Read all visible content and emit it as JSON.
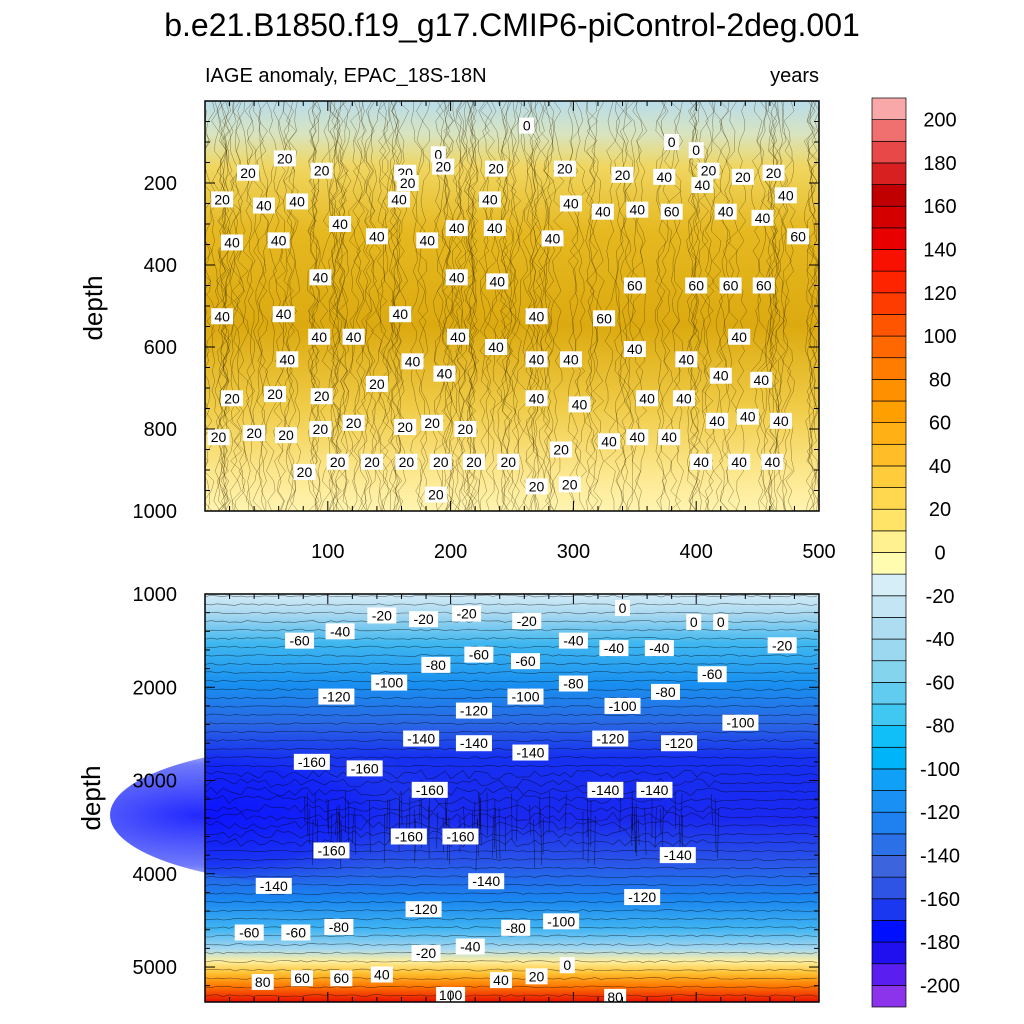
{
  "chart_data": {
    "type": "heatmap",
    "title": "b.e21.B1850.f19_g17.CMIP6-piControl-2deg.001",
    "subtitle_left": "IAGE anomaly, EPAC_18S-18N",
    "subtitle_right": "years",
    "xlabel": "",
    "x_ticks": [
      "100",
      "200",
      "300",
      "400",
      "500"
    ],
    "xlim": [
      0,
      500
    ],
    "colorbar": {
      "levels": [
        -210,
        -200,
        -190,
        -180,
        -170,
        -160,
        -150,
        -140,
        -130,
        -120,
        -110,
        -100,
        -90,
        -80,
        -70,
        -60,
        -50,
        -40,
        -30,
        -20,
        -10,
        0,
        10,
        20,
        30,
        40,
        50,
        60,
        70,
        80,
        90,
        100,
        110,
        120,
        130,
        140,
        150,
        160,
        170,
        180,
        190,
        200,
        210
      ],
      "colors": [
        "#8c34eb",
        "#5a1ff0",
        "#2010f0",
        "#0010ff",
        "#1a38f0",
        "#2e54e6",
        "#3c64dc",
        "#2c70e8",
        "#1f80f0",
        "#1890f4",
        "#10a0f8",
        "#00b4fa",
        "#10bef8",
        "#40c8f2",
        "#62ccf0",
        "#84d4ee",
        "#9cd8ef",
        "#aedcf0",
        "#c4e6f4",
        "#d6eef8",
        "#fffcb0",
        "#fff090",
        "#ffe468",
        "#ffd850",
        "#ffcc3c",
        "#ffbe28",
        "#ffb014",
        "#ffa000",
        "#ff9000",
        "#ff7c00",
        "#ff6800",
        "#ff5400",
        "#ff3c00",
        "#ff2400",
        "#f81000",
        "#e80000",
        "#d40000",
        "#c00000",
        "#d82020",
        "#e84848",
        "#f07070",
        "#f8a8a8"
      ],
      "tick_labels": [
        "200",
        "180",
        "160",
        "140",
        "120",
        "100",
        "80",
        "60",
        "40",
        "20",
        "0",
        "-20",
        "-40",
        "-60",
        "-80",
        "-100",
        "-120",
        "-140",
        "-160",
        "-180",
        "-200"
      ]
    },
    "panels": [
      {
        "name": "upper-ocean",
        "ylabel": "depth",
        "ylim": [
          0,
          1000
        ],
        "y_ticks": [
          "200",
          "400",
          "600",
          "800",
          "1000"
        ],
        "y_tick_values": [
          200,
          400,
          600,
          800,
          1000
        ],
        "contour_labels": [
          {
            "t": "0",
            "x": 262,
            "y": 60
          },
          {
            "t": "0",
            "x": 380,
            "y": 100
          },
          {
            "t": "0",
            "x": 400,
            "y": 120
          },
          {
            "t": "0",
            "x": 190,
            "y": 130
          },
          {
            "t": "20",
            "x": 65,
            "y": 140
          },
          {
            "t": "20",
            "x": 35,
            "y": 175
          },
          {
            "t": "20",
            "x": 95,
            "y": 170
          },
          {
            "t": "20",
            "x": 163,
            "y": 175
          },
          {
            "t": "20",
            "x": 165,
            "y": 200
          },
          {
            "t": "20",
            "x": 194,
            "y": 160
          },
          {
            "t": "20",
            "x": 237,
            "y": 165
          },
          {
            "t": "20",
            "x": 293,
            "y": 165
          },
          {
            "t": "20",
            "x": 340,
            "y": 180
          },
          {
            "t": "40",
            "x": 374,
            "y": 185
          },
          {
            "t": "20",
            "x": 410,
            "y": 170
          },
          {
            "t": "40",
            "x": 405,
            "y": 205
          },
          {
            "t": "20",
            "x": 438,
            "y": 185
          },
          {
            "t": "20",
            "x": 463,
            "y": 175
          },
          {
            "t": "40",
            "x": 473,
            "y": 230
          },
          {
            "t": "20",
            "x": 14,
            "y": 240
          },
          {
            "t": "40",
            "x": 48,
            "y": 255
          },
          {
            "t": "40",
            "x": 75,
            "y": 245
          },
          {
            "t": "40",
            "x": 158,
            "y": 240
          },
          {
            "t": "40",
            "x": 232,
            "y": 240
          },
          {
            "t": "40",
            "x": 298,
            "y": 250
          },
          {
            "t": "40",
            "x": 324,
            "y": 270
          },
          {
            "t": "40",
            "x": 352,
            "y": 265
          },
          {
            "t": "60",
            "x": 380,
            "y": 270
          },
          {
            "t": "40",
            "x": 424,
            "y": 270
          },
          {
            "t": "40",
            "x": 454,
            "y": 285
          },
          {
            "t": "40",
            "x": 22,
            "y": 345
          },
          {
            "t": "40",
            "x": 60,
            "y": 340
          },
          {
            "t": "40",
            "x": 110,
            "y": 300
          },
          {
            "t": "40",
            "x": 140,
            "y": 330
          },
          {
            "t": "40",
            "x": 181,
            "y": 340
          },
          {
            "t": "40",
            "x": 205,
            "y": 310
          },
          {
            "t": "40",
            "x": 236,
            "y": 310
          },
          {
            "t": "40",
            "x": 283,
            "y": 335
          },
          {
            "t": "60",
            "x": 483,
            "y": 330
          },
          {
            "t": "40",
            "x": 94,
            "y": 430
          },
          {
            "t": "40",
            "x": 205,
            "y": 430
          },
          {
            "t": "40",
            "x": 238,
            "y": 440
          },
          {
            "t": "60",
            "x": 350,
            "y": 450
          },
          {
            "t": "60",
            "x": 400,
            "y": 450
          },
          {
            "t": "60",
            "x": 428,
            "y": 450
          },
          {
            "t": "60",
            "x": 455,
            "y": 450
          },
          {
            "t": "40",
            "x": 14,
            "y": 525
          },
          {
            "t": "40",
            "x": 64,
            "y": 520
          },
          {
            "t": "40",
            "x": 159,
            "y": 520
          },
          {
            "t": "60",
            "x": 325,
            "y": 530
          },
          {
            "t": "40",
            "x": 93,
            "y": 575
          },
          {
            "t": "40",
            "x": 121,
            "y": 575
          },
          {
            "t": "40",
            "x": 206,
            "y": 575
          },
          {
            "t": "40",
            "x": 237,
            "y": 600
          },
          {
            "t": "40",
            "x": 270,
            "y": 525
          },
          {
            "t": "40",
            "x": 350,
            "y": 605
          },
          {
            "t": "40",
            "x": 435,
            "y": 575
          },
          {
            "t": "40",
            "x": 67,
            "y": 630
          },
          {
            "t": "40",
            "x": 169,
            "y": 635
          },
          {
            "t": "40",
            "x": 195,
            "y": 665
          },
          {
            "t": "40",
            "x": 270,
            "y": 630
          },
          {
            "t": "40",
            "x": 298,
            "y": 630
          },
          {
            "t": "40",
            "x": 392,
            "y": 630
          },
          {
            "t": "40",
            "x": 420,
            "y": 670
          },
          {
            "t": "40",
            "x": 453,
            "y": 680
          },
          {
            "t": "20",
            "x": 140,
            "y": 690
          },
          {
            "t": "20",
            "x": 22,
            "y": 725
          },
          {
            "t": "20",
            "x": 57,
            "y": 715
          },
          {
            "t": "20",
            "x": 95,
            "y": 720
          },
          {
            "t": "40",
            "x": 270,
            "y": 725
          },
          {
            "t": "40",
            "x": 305,
            "y": 740
          },
          {
            "t": "40",
            "x": 360,
            "y": 725
          },
          {
            "t": "40",
            "x": 390,
            "y": 725
          },
          {
            "t": "20",
            "x": 11,
            "y": 820
          },
          {
            "t": "20",
            "x": 40,
            "y": 810
          },
          {
            "t": "20",
            "x": 66,
            "y": 815
          },
          {
            "t": "20",
            "x": 94,
            "y": 800
          },
          {
            "t": "20",
            "x": 121,
            "y": 785
          },
          {
            "t": "20",
            "x": 163,
            "y": 795
          },
          {
            "t": "20",
            "x": 185,
            "y": 785
          },
          {
            "t": "20",
            "x": 212,
            "y": 800
          },
          {
            "t": "40",
            "x": 417,
            "y": 780
          },
          {
            "t": "40",
            "x": 442,
            "y": 770
          },
          {
            "t": "40",
            "x": 469,
            "y": 780
          },
          {
            "t": "40",
            "x": 329,
            "y": 830
          },
          {
            "t": "40",
            "x": 352,
            "y": 820
          },
          {
            "t": "40",
            "x": 378,
            "y": 820
          },
          {
            "t": "40",
            "x": 404,
            "y": 880
          },
          {
            "t": "40",
            "x": 435,
            "y": 880
          },
          {
            "t": "40",
            "x": 462,
            "y": 880
          },
          {
            "t": "20",
            "x": 290,
            "y": 850
          },
          {
            "t": "20",
            "x": 81,
            "y": 905
          },
          {
            "t": "20",
            "x": 108,
            "y": 880
          },
          {
            "t": "20",
            "x": 136,
            "y": 880
          },
          {
            "t": "20",
            "x": 164,
            "y": 880
          },
          {
            "t": "20",
            "x": 192,
            "y": 880
          },
          {
            "t": "20",
            "x": 219,
            "y": 880
          },
          {
            "t": "20",
            "x": 247,
            "y": 880
          },
          {
            "t": "20",
            "x": 270,
            "y": 940
          },
          {
            "t": "20",
            "x": 297,
            "y": 935
          },
          {
            "t": "20",
            "x": 188,
            "y": 960
          }
        ]
      },
      {
        "name": "deep-ocean",
        "ylabel": "depth",
        "ylim": [
          1000,
          5375
        ],
        "y_ticks": [
          "1000",
          "2000",
          "3000",
          "4000",
          "5000"
        ],
        "y_tick_values": [
          1000,
          2000,
          3000,
          4000,
          5000
        ],
        "contour_labels": [
          {
            "t": "-20",
            "x": 144,
            "y": 1230
          },
          {
            "t": "-20",
            "x": 178,
            "y": 1270
          },
          {
            "t": "-20",
            "x": 213,
            "y": 1210
          },
          {
            "t": "-20",
            "x": 262,
            "y": 1290
          },
          {
            "t": "0",
            "x": 340,
            "y": 1150
          },
          {
            "t": "0",
            "x": 398,
            "y": 1300
          },
          {
            "t": "0",
            "x": 420,
            "y": 1300
          },
          {
            "t": "-20",
            "x": 470,
            "y": 1550
          },
          {
            "t": "-40",
            "x": 110,
            "y": 1400
          },
          {
            "t": "-60",
            "x": 77,
            "y": 1500
          },
          {
            "t": "-40",
            "x": 300,
            "y": 1500
          },
          {
            "t": "-40",
            "x": 333,
            "y": 1580
          },
          {
            "t": "-40",
            "x": 370,
            "y": 1580
          },
          {
            "t": "-80",
            "x": 188,
            "y": 1760
          },
          {
            "t": "-60",
            "x": 223,
            "y": 1650
          },
          {
            "t": "-60",
            "x": 261,
            "y": 1720
          },
          {
            "t": "-60",
            "x": 413,
            "y": 1860
          },
          {
            "t": "-80",
            "x": 300,
            "y": 1960
          },
          {
            "t": "-80",
            "x": 375,
            "y": 2050
          },
          {
            "t": "-100",
            "x": 150,
            "y": 1950
          },
          {
            "t": "-100",
            "x": 261,
            "y": 2100
          },
          {
            "t": "-100",
            "x": 340,
            "y": 2200
          },
          {
            "t": "-100",
            "x": 436,
            "y": 2380
          },
          {
            "t": "-120",
            "x": 107,
            "y": 2100
          },
          {
            "t": "-120",
            "x": 219,
            "y": 2250
          },
          {
            "t": "-120",
            "x": 330,
            "y": 2550
          },
          {
            "t": "-120",
            "x": 386,
            "y": 2600
          },
          {
            "t": "-140",
            "x": 176,
            "y": 2550
          },
          {
            "t": "-140",
            "x": 219,
            "y": 2600
          },
          {
            "t": "-140",
            "x": 265,
            "y": 2700
          },
          {
            "t": "-140",
            "x": 326,
            "y": 3100
          },
          {
            "t": "-140",
            "x": 366,
            "y": 3100
          },
          {
            "t": "-160",
            "x": 87,
            "y": 2800
          },
          {
            "t": "-160",
            "x": 130,
            "y": 2870
          },
          {
            "t": "-160",
            "x": 183,
            "y": 3100
          },
          {
            "t": "-160",
            "x": 103,
            "y": 3750
          },
          {
            "t": "-160",
            "x": 166,
            "y": 3600
          },
          {
            "t": "-160",
            "x": 208,
            "y": 3600
          },
          {
            "t": "-140",
            "x": 385,
            "y": 3800
          },
          {
            "t": "-140",
            "x": 56,
            "y": 4130
          },
          {
            "t": "-140",
            "x": 229,
            "y": 4080
          },
          {
            "t": "-120",
            "x": 178,
            "y": 4380
          },
          {
            "t": "-120",
            "x": 356,
            "y": 4250
          },
          {
            "t": "-100",
            "x": 290,
            "y": 4510
          },
          {
            "t": "-80",
            "x": 109,
            "y": 4570
          },
          {
            "t": "-80",
            "x": 253,
            "y": 4580
          },
          {
            "t": "-60",
            "x": 36,
            "y": 4630
          },
          {
            "t": "-60",
            "x": 74,
            "y": 4630
          },
          {
            "t": "-40",
            "x": 216,
            "y": 4780
          },
          {
            "t": "-20",
            "x": 180,
            "y": 4850
          },
          {
            "t": "0",
            "x": 295,
            "y": 4980
          },
          {
            "t": "20",
            "x": 270,
            "y": 5100
          },
          {
            "t": "40",
            "x": 144,
            "y": 5080
          },
          {
            "t": "40",
            "x": 241,
            "y": 5140
          },
          {
            "t": "60",
            "x": 79,
            "y": 5120
          },
          {
            "t": "60",
            "x": 111,
            "y": 5120
          },
          {
            "t": "80",
            "x": 47,
            "y": 5160
          },
          {
            "t": "80",
            "x": 334,
            "y": 5320
          },
          {
            "t": "100",
            "x": 200,
            "y": 5300
          }
        ]
      }
    ]
  }
}
